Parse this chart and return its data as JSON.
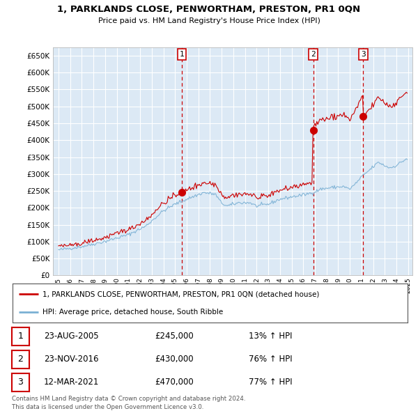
{
  "title1": "1, PARKLANDS CLOSE, PENWORTHAM, PRESTON, PR1 0QN",
  "title2": "Price paid vs. HM Land Registry's House Price Index (HPI)",
  "bg_color": "#dce9f5",
  "grid_color": "#ffffff",
  "sale_color": "#cc0000",
  "hpi_color": "#7ab0d4",
  "ylim": [
    0,
    675000
  ],
  "yticks": [
    0,
    50000,
    100000,
    150000,
    200000,
    250000,
    300000,
    350000,
    400000,
    450000,
    500000,
    550000,
    600000,
    650000
  ],
  "sale_year_floats": [
    2005.645,
    2016.896,
    2021.192
  ],
  "sale_prices": [
    245000,
    430000,
    470000
  ],
  "sale_labels": [
    "1",
    "2",
    "3"
  ],
  "legend_sale": "1, PARKLANDS CLOSE, PENWORTHAM, PRESTON, PR1 0QN (detached house)",
  "legend_hpi": "HPI: Average price, detached house, South Ribble",
  "table_rows": [
    [
      "1",
      "23-AUG-2005",
      "£245,000",
      "13% ↑ HPI"
    ],
    [
      "2",
      "23-NOV-2016",
      "£430,000",
      "76% ↑ HPI"
    ],
    [
      "3",
      "12-MAR-2021",
      "£470,000",
      "77% ↑ HPI"
    ]
  ],
  "footer": "Contains HM Land Registry data © Crown copyright and database right 2024.\nThis data is licensed under the Open Government Licence v3.0."
}
